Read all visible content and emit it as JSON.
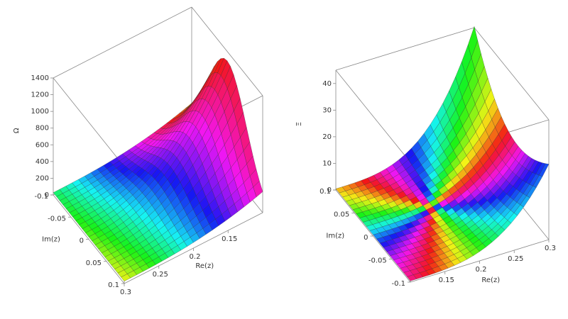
{
  "chart_data": [
    {
      "type": "surface3d",
      "zlabel": "Ω",
      "xlabel": "Re(z)",
      "ylabel": "Im(z)",
      "xlim": [
        0.3,
        0.1
      ],
      "xticks": [
        0.3,
        0.25,
        0.2,
        0.15
      ],
      "ylim": [
        0.1,
        -0.1
      ],
      "yticks": [
        -0.1,
        -0.05,
        0,
        0.05,
        0.1
      ],
      "zlim": [
        0,
        1400
      ],
      "zticks": [
        0,
        200,
        400,
        600,
        800,
        1000,
        1200,
        1400
      ]
    },
    {
      "type": "surface3d",
      "zlabel": "Ξ",
      "xlabel": "Re(z)",
      "ylabel": "Im(z)",
      "xlim": [
        0.1,
        0.3
      ],
      "xticks": [
        0.15,
        0.2,
        0.25,
        0.3
      ],
      "ylim": [
        -0.1,
        0.1
      ],
      "yticks": [
        0.1,
        0.05,
        0,
        -0.05,
        -0.1
      ],
      "zlim": [
        0,
        45
      ],
      "zticks": [
        0,
        10,
        20,
        30,
        40
      ]
    }
  ]
}
